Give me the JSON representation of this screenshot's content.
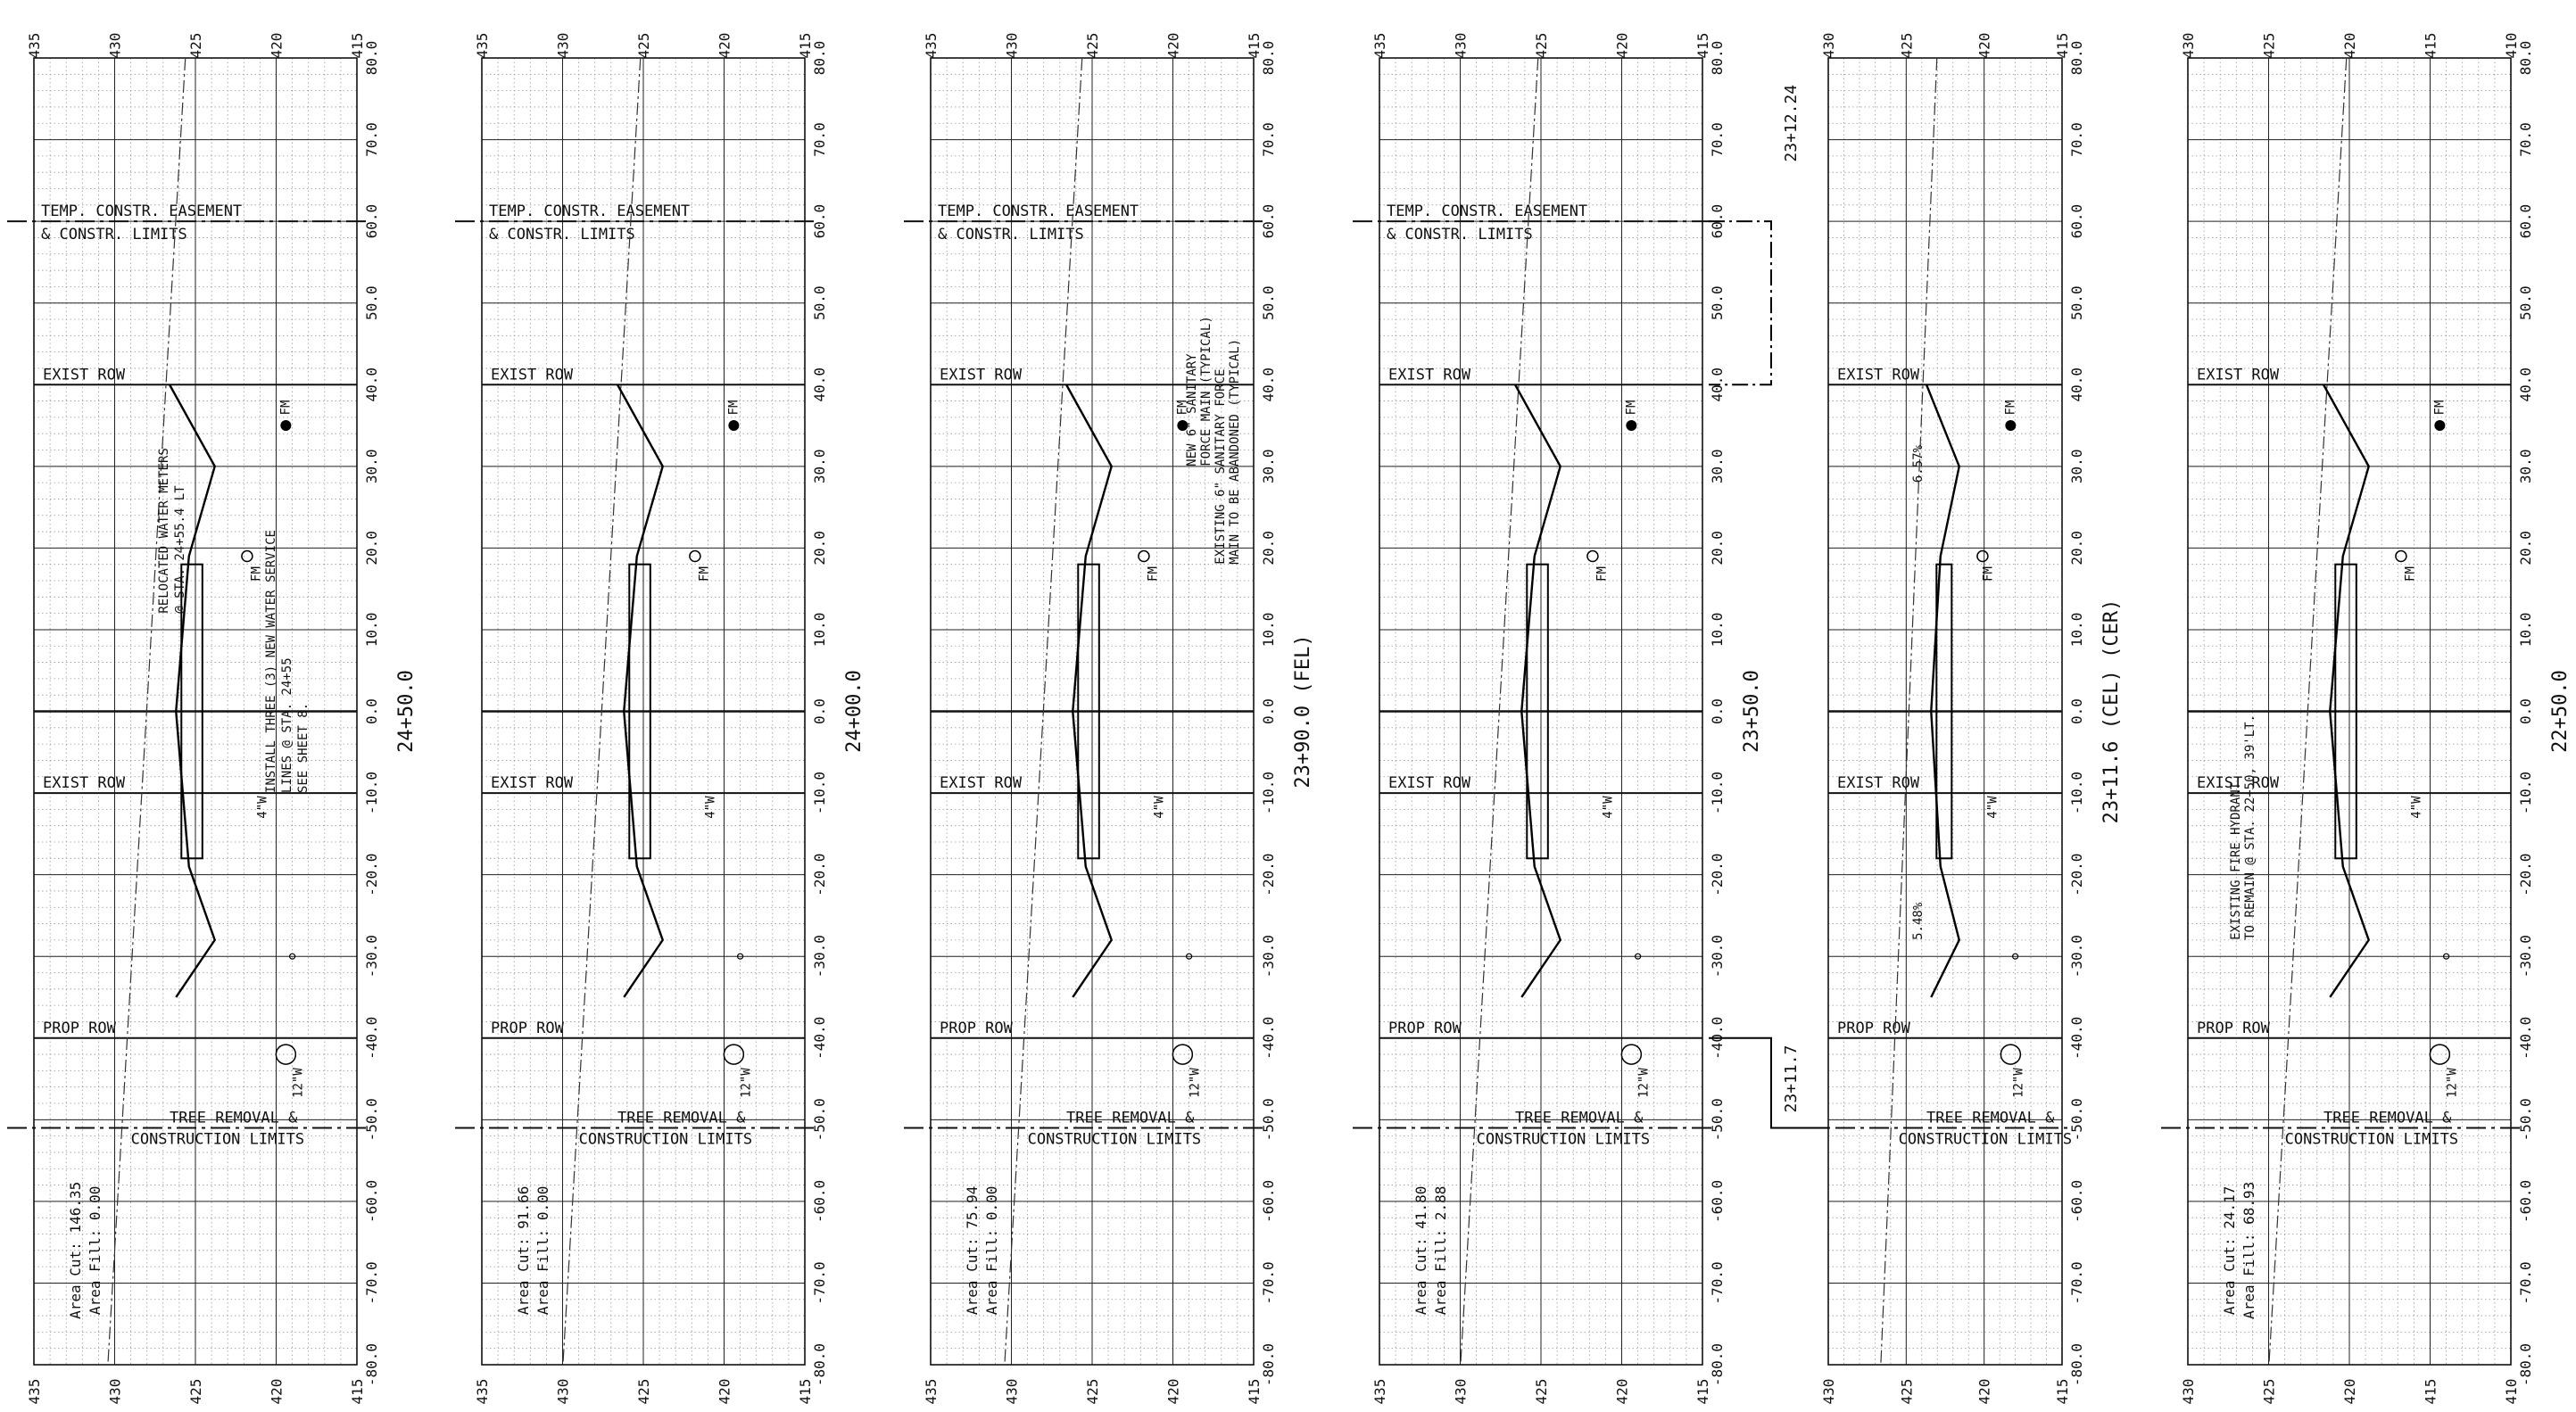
{
  "sheet": {
    "station_axis_ticks": [
      "80.0",
      "70.0",
      "60.0",
      "50.0",
      "40.0",
      "30.0",
      "20.0",
      "10.0",
      "0.0",
      "-10.0",
      "-20.0",
      "-30.0",
      "-40.0",
      "-50.0",
      "-60.0",
      "-70.0",
      "-80.0"
    ],
    "panels": [
      {
        "id": "p1",
        "station": "24+50.0",
        "elev_ticks": [
          "435",
          "430",
          "425",
          "420",
          "415"
        ],
        "labels": {
          "tce": [
            "TEMP. CONSTR. EASEMENT",
            "& CONSTR. LIMITS"
          ],
          "row_top": "EXIST ROW",
          "row_bottom": "EXIST ROW",
          "prop_row": "PROP ROW",
          "tree": [
            "TREE REMOVAL &",
            "CONSTRUCTION LIMITS"
          ],
          "fm": "FM",
          "w4": "4\"W",
          "w12": "12\"W",
          "area_cut": "Area Cut: 146.35",
          "area_fill": "Area Fill: 0.00"
        },
        "notes": [
          "RELOCATED WATER METERS",
          "@ STA. 24+55.4 LT",
          "INSTALL THREE (3) NEW WATER SERVICE",
          "LINES @ STA. 24+55",
          "SEE SHEET 8."
        ]
      },
      {
        "id": "p2",
        "station": "24+00.0",
        "elev_ticks": [
          "435",
          "430",
          "425",
          "420",
          "415"
        ],
        "labels": {
          "tce": [
            "TEMP. CONSTR. EASEMENT",
            "& CONSTR. LIMITS"
          ],
          "row_top": "EXIST ROW",
          "row_bottom": "EXIST ROW",
          "prop_row": "PROP ROW",
          "tree": [
            "TREE REMOVAL &",
            "CONSTRUCTION LIMITS"
          ],
          "fm": "FM",
          "w4": "4\"W",
          "w12": "12\"W",
          "area_cut": "Area Cut: 91.66",
          "area_fill": "Area Fill: 0.00"
        },
        "notes": []
      },
      {
        "id": "p3",
        "station": "23+90.0 (FEL)",
        "elev_ticks": [
          "435",
          "430",
          "425",
          "420",
          "415"
        ],
        "labels": {
          "tce": [
            "TEMP. CONSTR. EASEMENT",
            "& CONSTR. LIMITS"
          ],
          "row_top": "EXIST ROW",
          "row_bottom": "EXIST ROW",
          "prop_row": "PROP ROW",
          "tree": [
            "TREE REMOVAL &",
            "CONSTRUCTION LIMITS"
          ],
          "fm": "FM",
          "w4": "4\"W",
          "w12": "12\"W",
          "area_cut": "Area Cut: 75.94",
          "area_fill": "Area Fill: 0.00"
        },
        "notes": [
          "NEW 6\" SANITARY",
          "FORCE MAIN (TYPICAL)",
          "EXISTING 6\" SANITARY FORCE",
          "MAIN TO BE ABANDONED (TYPICAL)"
        ]
      },
      {
        "id": "p4",
        "station": "23+50.0",
        "elev_ticks": [
          "435",
          "430",
          "425",
          "420",
          "415"
        ],
        "labels": {
          "tce": [
            "TEMP. CONSTR. EASEMENT",
            "& CONSTR. LIMITS"
          ],
          "row_top": "EXIST ROW",
          "row_bottom": "EXIST ROW",
          "prop_row": "PROP ROW",
          "tree": [
            "TREE REMOVAL &",
            "CONSTRUCTION LIMITS"
          ],
          "fm": "FM",
          "w4": "4\"W",
          "w12": "12\"W",
          "area_cut": "Area Cut: 41.80",
          "area_fill": "Area Fill: 2.88"
        },
        "notes": [
          "23+12.24",
          "23+11.7"
        ]
      },
      {
        "id": "p5",
        "station": "23+11.6 (CEL) (CER)",
        "elev_ticks": [
          "430",
          "425",
          "420",
          "415"
        ],
        "labels": {
          "tce": [
            "",
            ""
          ],
          "row_top": "EXIST ROW",
          "row_bottom": "EXIST ROW",
          "prop_row": "PROP ROW",
          "tree": [
            "TREE REMOVAL &",
            "CONSTRUCTION LIMITS"
          ],
          "fm": "FM",
          "w4": "4\"W",
          "w12": "12\"W",
          "area_cut": "",
          "area_fill": ""
        },
        "notes": [
          "6.57%",
          "5.48%"
        ]
      },
      {
        "id": "p6",
        "station": "22+50.0",
        "elev_ticks": [
          "430",
          "425",
          "420",
          "415",
          "410"
        ],
        "labels": {
          "tce": [
            "",
            ""
          ],
          "row_top": "EXIST ROW",
          "row_bottom": "EXIST ROW",
          "prop_row": "PROP ROW",
          "tree": [
            "TREE REMOVAL &",
            "CONSTRUCTION LIMITS"
          ],
          "fm": "FM",
          "w4": "4\"W",
          "w12": "12\"W",
          "area_cut": "Area Cut: 24.17",
          "area_fill": "Area Fill: 68.93"
        },
        "notes": [
          "EXISTING FIRE HYDRANT",
          "TO REMAIN @ STA. 22+50, 39'LT."
        ]
      }
    ]
  }
}
